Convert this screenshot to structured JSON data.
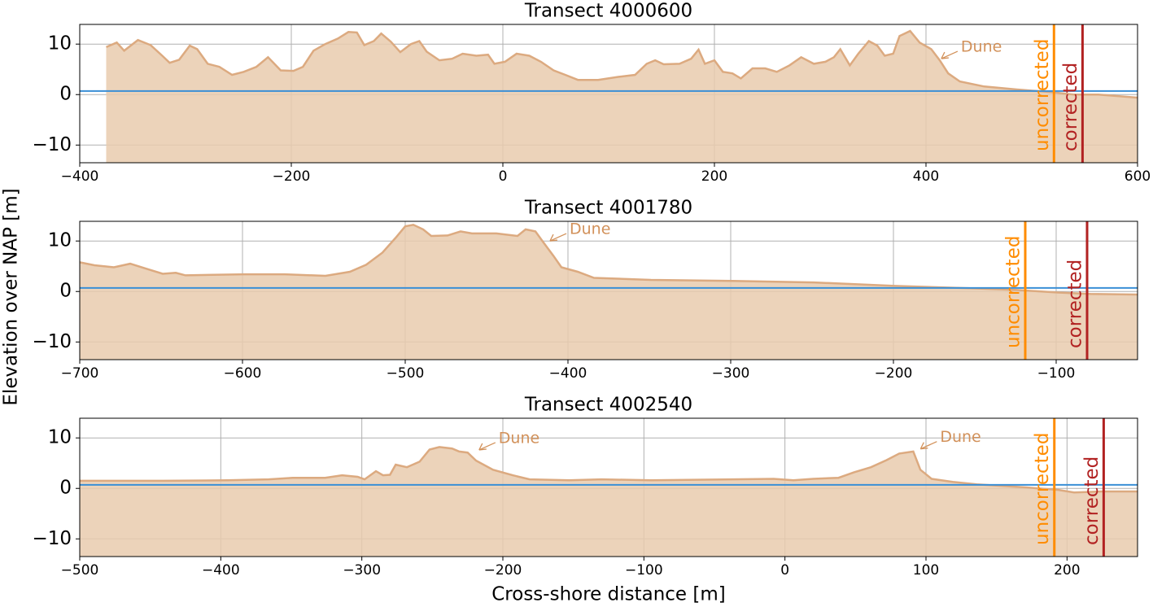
{
  "ylabel": "Elevation over NAP [m]",
  "xlabel": "Cross-shore distance [m]",
  "chart_data": [
    {
      "type": "area",
      "title": "Transect 4000600",
      "color": "#e9cbae",
      "line_color": "#dcaa80",
      "x": [
        -375,
        -365,
        -358,
        -345,
        -333,
        -322,
        -315,
        -306,
        -296,
        -289,
        -279,
        -268,
        -256,
        -245,
        -233,
        -222,
        -210,
        -198,
        -189,
        -179,
        -168,
        -156,
        -146,
        -138,
        -131,
        -122,
        -115,
        -106,
        -97,
        -87,
        -79,
        -72,
        -60,
        -48,
        -38,
        -25,
        -14,
        -8,
        2,
        13,
        25,
        36,
        48,
        59,
        71,
        90,
        109,
        125,
        136,
        144,
        152,
        167,
        178,
        185,
        191,
        200,
        208,
        217,
        225,
        236,
        248,
        259,
        271,
        282,
        294,
        305,
        313,
        319,
        328,
        336,
        346,
        354,
        361,
        369,
        375,
        385,
        394,
        405,
        413,
        421,
        432,
        455,
        486,
        517,
        540,
        563,
        600
      ],
      "values": [
        9.4,
        10.3,
        8.7,
        10.8,
        9.8,
        7.7,
        6.3,
        6.9,
        9.7,
        9,
        6.1,
        5.5,
        3.9,
        4.5,
        5.5,
        7.4,
        4.8,
        4.7,
        5.5,
        8.7,
        10,
        11.1,
        12.4,
        12.3,
        9.8,
        10.6,
        12.1,
        10.5,
        8.4,
        10,
        10.6,
        8.5,
        6.8,
        7.1,
        8.1,
        7.7,
        7.9,
        6.1,
        6.5,
        8.1,
        7.7,
        6.5,
        4.8,
        3.9,
        2.9,
        2.9,
        3.5,
        3.9,
        6.1,
        6.8,
        6,
        6.1,
        7.1,
        8.9,
        6.1,
        6.8,
        4.5,
        4.2,
        3.2,
        5.2,
        5.2,
        4.5,
        5.8,
        7.4,
        6.1,
        6.5,
        7.4,
        9,
        5.8,
        8.1,
        10.6,
        9.7,
        7.7,
        8.1,
        11.6,
        12.6,
        10.3,
        9,
        6.8,
        4.2,
        2.6,
        1.6,
        1,
        0.5,
        0,
        0,
        -0.6
      ],
      "hline": 0.7,
      "hline_color": "#3a8fd6",
      "vlines": [
        {
          "label": "uncorrected",
          "x": 521,
          "color": "#ff8c00"
        },
        {
          "label": "corrected",
          "x": 548,
          "color": "#b22222"
        }
      ],
      "annotations": [
        {
          "text": "Dune",
          "x": 413,
          "y": 6.8,
          "color": "#d2915a"
        }
      ],
      "xlim": [
        -400,
        600
      ],
      "ylim": [
        -13.5,
        13.9
      ],
      "xticks": [
        {
          "value": -400,
          "label": "−400"
        },
        {
          "value": -200,
          "label": "−200"
        },
        0,
        200,
        400,
        600
      ],
      "yticks": [
        {
          "value": -10,
          "label": "−10"
        },
        0,
        10
      ],
      "grid": true
    },
    {
      "type": "area",
      "title": "Transect 4001780",
      "color": "#e9cbae",
      "line_color": "#dcaa80",
      "x": [
        -700,
        -691,
        -679,
        -669,
        -659,
        -649,
        -641,
        -635,
        -599,
        -574,
        -549,
        -534,
        -524,
        -514,
        -506,
        -500,
        -495,
        -489,
        -484,
        -474,
        -466,
        -459,
        -444,
        -431,
        -426,
        -420,
        -415,
        -409,
        -404,
        -394,
        -384,
        -349,
        -299,
        -249,
        -199,
        -149,
        -124,
        -99,
        -79,
        -50
      ],
      "values": [
        5.8,
        5.2,
        4.8,
        5.5,
        4.5,
        3.5,
        3.7,
        3.2,
        3.4,
        3.4,
        3.1,
        3.9,
        5.3,
        7.7,
        10.6,
        12.9,
        13.2,
        12.3,
        11,
        11.1,
        11.9,
        11.5,
        11.5,
        11,
        12.3,
        11.9,
        9.7,
        7.1,
        4.8,
        3.9,
        2.7,
        2.3,
        2.1,
        1.8,
        1.1,
        0.6,
        0.3,
        -0.2,
        -0.5,
        -0.6
      ],
      "hline": 0.7,
      "hline_color": "#3a8fd6",
      "vlines": [
        {
          "label": "uncorrected",
          "x": -119,
          "color": "#ff8c00"
        },
        {
          "label": "corrected",
          "x": -81,
          "color": "#b22222"
        }
      ],
      "annotations": [
        {
          "text": "Dune",
          "x": -412,
          "y": 9.7,
          "color": "#d2915a"
        }
      ],
      "xlim": [
        -700,
        -50
      ],
      "ylim": [
        -13.5,
        13.9
      ],
      "xticks": [
        {
          "value": -700,
          "label": "−700"
        },
        {
          "value": -600,
          "label": "−600"
        },
        {
          "value": -500,
          "label": "−500"
        },
        {
          "value": -400,
          "label": "−400"
        },
        {
          "value": -300,
          "label": "−300"
        },
        {
          "value": -200,
          "label": "−200"
        },
        {
          "value": -100,
          "label": "−100"
        }
      ],
      "yticks": [
        {
          "value": -10,
          "label": "−10"
        },
        0,
        10
      ],
      "grid": true
    },
    {
      "type": "area",
      "title": "Transect 4002540",
      "color": "#e9cbae",
      "line_color": "#dcaa80",
      "x": [
        -500,
        -441,
        -395,
        -366,
        -349,
        -326,
        -314,
        -303,
        -298,
        -290,
        -285,
        -280,
        -276,
        -268,
        -259,
        -252,
        -245,
        -236,
        -231,
        -225,
        -219,
        -207,
        -193,
        -181,
        -153,
        -130,
        -95,
        -37,
        -8,
        6,
        20,
        38,
        49,
        61,
        72,
        81,
        91,
        96,
        104,
        119,
        136,
        171,
        194,
        205,
        225,
        250
      ],
      "values": [
        1.5,
        1.5,
        1.6,
        1.8,
        2.1,
        2.1,
        2.6,
        2.3,
        1.8,
        3.4,
        2.6,
        2.7,
        4.7,
        4.2,
        5.3,
        7.7,
        8.2,
        7.9,
        7.3,
        7.1,
        5.5,
        3.7,
        2.6,
        1.8,
        1.6,
        1.8,
        1.6,
        1.8,
        1.9,
        1.6,
        1.9,
        2.1,
        3.2,
        4.2,
        5.6,
        6.9,
        7.3,
        3.7,
        1.9,
        1.3,
        0.8,
        0.2,
        -0.3,
        -0.8,
        -0.6,
        -0.6
      ],
      "hline": 0.7,
      "hline_color": "#3a8fd6",
      "vlines": [
        {
          "label": "uncorrected",
          "x": 191,
          "color": "#ff8c00"
        },
        {
          "label": "corrected",
          "x": 226,
          "color": "#b22222"
        }
      ],
      "annotations": [
        {
          "text": "Dune",
          "x": -218,
          "y": 7.3,
          "color": "#d2915a"
        },
        {
          "text": "Dune",
          "x": 95,
          "y": 7.5,
          "color": "#d2915a"
        }
      ],
      "xlim": [
        -500,
        250
      ],
      "ylim": [
        -13.5,
        13.9
      ],
      "xticks": [
        {
          "value": -500,
          "label": "−500"
        },
        {
          "value": -400,
          "label": "−400"
        },
        {
          "value": -300,
          "label": "−300"
        },
        {
          "value": -200,
          "label": "−200"
        },
        {
          "value": -100,
          "label": "−100"
        },
        0,
        100,
        200
      ],
      "yticks": [
        {
          "value": -10,
          "label": "−10"
        },
        0,
        10
      ],
      "grid": true
    }
  ]
}
